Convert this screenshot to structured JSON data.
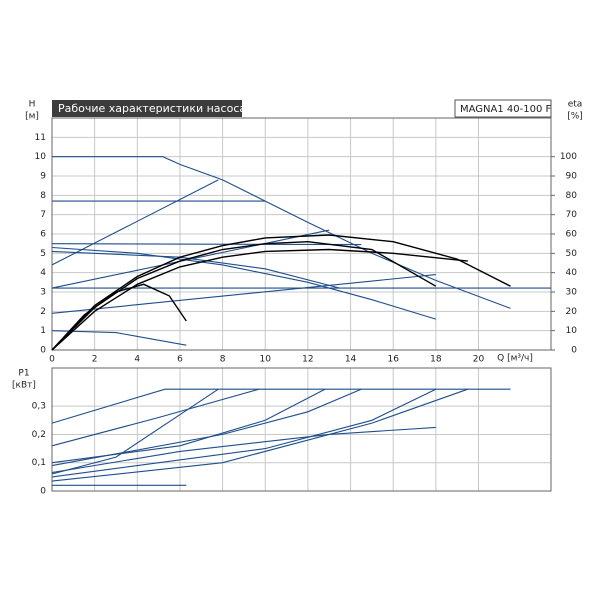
{
  "chart_data": [
    {
      "type": "line",
      "title": "Рабочие характеристики насоса",
      "subtitle": "MAGNA1 40-100 F",
      "ylabel": "H",
      "yunit": "[м]",
      "y2label": "eta",
      "y2unit": "[%]",
      "xlabel": "Q [м³/ч]",
      "xlim": [
        0,
        23.4
      ],
      "xticks": [
        0,
        2,
        4,
        6,
        8,
        10,
        12,
        14,
        16,
        18,
        20
      ],
      "ylim": [
        0,
        12
      ],
      "yticks": [
        0,
        1,
        2,
        3,
        4,
        5,
        6,
        7,
        8,
        9,
        10,
        11
      ],
      "y2lim": [
        0,
        120
      ],
      "y2ticks": [
        0,
        10,
        20,
        30,
        40,
        50,
        60,
        70,
        80,
        90,
        100
      ],
      "grid": true,
      "series": [
        {
          "color": "#1f4e8c",
          "x": [
            0,
            5.2,
            6,
            8,
            10,
            12,
            15,
            18,
            21.5
          ],
          "values": [
            10,
            10,
            9.6,
            8.8,
            7.7,
            6.6,
            5.0,
            3.6,
            2.15
          ]
        },
        {
          "color": "#1f4e8c",
          "x": [
            0,
            10
          ],
          "values": [
            7.7,
            7.7
          ]
        },
        {
          "color": "#1f4e8c",
          "x": [
            0,
            7.8
          ],
          "values": [
            4.4,
            8.8
          ]
        },
        {
          "color": "#1f4e8c",
          "x": [
            0,
            14.5
          ],
          "values": [
            5.5,
            5.45
          ]
        },
        {
          "color": "#1f4e8c",
          "x": [
            0,
            13
          ],
          "values": [
            3.2,
            6.2
          ]
        },
        {
          "color": "#1f4e8c",
          "x": [
            0,
            4,
            8,
            12,
            15,
            18
          ],
          "values": [
            5.3,
            5.0,
            4.4,
            3.5,
            2.6,
            1.6
          ]
        },
        {
          "color": "#1f4e8c",
          "x": [
            0,
            23.4
          ],
          "values": [
            3.2,
            3.2
          ]
        },
        {
          "color": "#1f4e8c",
          "x": [
            0,
            18
          ],
          "values": [
            1.9,
            3.9
          ]
        },
        {
          "color": "#1f4e8c",
          "x": [
            0,
            6,
            10,
            13.5
          ],
          "values": [
            5.1,
            4.8,
            4.2,
            3.2
          ]
        },
        {
          "color": "#1f4e8c",
          "x": [
            0,
            3,
            6.3
          ],
          "values": [
            1.0,
            0.9,
            0.25
          ]
        },
        {
          "color": "#000000",
          "axis": "y2",
          "x": [
            0,
            2,
            4,
            6,
            8,
            10,
            13,
            16,
            19,
            21.5
          ],
          "values": [
            0,
            23,
            38,
            48,
            54,
            58,
            59.5,
            56,
            47,
            33
          ]
        },
        {
          "color": "#000000",
          "axis": "y2",
          "x": [
            0,
            2,
            4,
            6,
            8,
            10,
            12,
            15,
            18
          ],
          "values": [
            0,
            22,
            37,
            46,
            52,
            55,
            56,
            52,
            33
          ]
        },
        {
          "color": "#000000",
          "axis": "y2",
          "x": [
            0,
            2,
            4,
            6,
            8,
            10,
            13,
            16,
            19.5
          ],
          "values": [
            0,
            20,
            34,
            43,
            48,
            51,
            52,
            50,
            46
          ]
        },
        {
          "color": "#000000",
          "axis": "y2",
          "x": [
            0,
            1.5,
            3,
            4.3,
            5.5,
            6.3
          ],
          "values": [
            0,
            18,
            30,
            34,
            28,
            15
          ]
        }
      ]
    },
    {
      "type": "line",
      "ylabel": "P1",
      "yunit": "[кВт]",
      "xlim": [
        0,
        23.4
      ],
      "xticks": [
        0,
        2,
        4,
        6,
        8,
        10,
        12,
        14,
        16,
        18,
        20
      ],
      "ylim": [
        0,
        0.435
      ],
      "yticks": [
        0,
        {
          "value": 0.1,
          "label": "0,1"
        },
        {
          "value": 0.2,
          "label": "0,2"
        },
        {
          "value": 0.3,
          "label": "0,3"
        }
      ],
      "grid": true,
      "series": [
        {
          "color": "#1f4e8c",
          "x": [
            0,
            5.3,
            21.5
          ],
          "values": [
            0.24,
            0.36,
            0.36
          ]
        },
        {
          "color": "#1f4e8c",
          "x": [
            0,
            5,
            9.7
          ],
          "values": [
            0.16,
            0.26,
            0.36
          ]
        },
        {
          "color": "#1f4e8c",
          "x": [
            0,
            3,
            6,
            7.8
          ],
          "values": [
            0.06,
            0.12,
            0.27,
            0.36
          ]
        },
        {
          "color": "#1f4e8c",
          "x": [
            0,
            6,
            10,
            12.8
          ],
          "values": [
            0.1,
            0.16,
            0.25,
            0.36
          ]
        },
        {
          "color": "#1f4e8c",
          "x": [
            0,
            8,
            12,
            14.5
          ],
          "values": [
            0.09,
            0.2,
            0.28,
            0.36
          ]
        },
        {
          "color": "#1f4e8c",
          "x": [
            0,
            10,
            15,
            18
          ],
          "values": [
            0.05,
            0.15,
            0.25,
            0.36
          ]
        },
        {
          "color": "#1f4e8c",
          "x": [
            0,
            8,
            15,
            19.5
          ],
          "values": [
            0.035,
            0.1,
            0.24,
            0.36
          ]
        },
        {
          "color": "#1f4e8c",
          "x": [
            0,
            6,
            13,
            18
          ],
          "values": [
            0.065,
            0.14,
            0.2,
            0.225
          ]
        },
        {
          "color": "#1f4e8c",
          "x": [
            0,
            6.3
          ],
          "values": [
            0.02,
            0.02
          ]
        }
      ]
    }
  ]
}
